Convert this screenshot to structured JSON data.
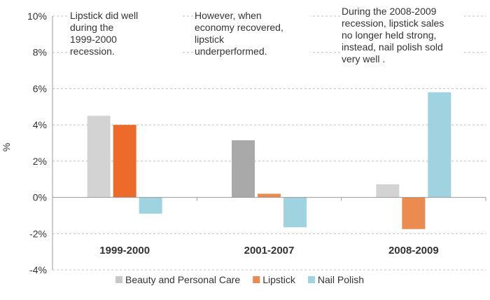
{
  "chart_data": {
    "type": "bar",
    "ylabel": "%",
    "ylim": [
      -4,
      10
    ],
    "yticks": [
      -4,
      -2,
      0,
      2,
      4,
      6,
      8,
      10
    ],
    "ytick_labels": [
      "-4%",
      "-2%",
      "0%",
      "2%",
      "4%",
      "6%",
      "8%",
      "10%"
    ],
    "categories": [
      "1999-2000",
      "2001-2007",
      "2008-2009"
    ],
    "series": [
      {
        "name": "Beauty and Personal Care",
        "values": [
          4.5,
          3.15,
          0.72
        ]
      },
      {
        "name": "Lipstick",
        "values": [
          4.0,
          0.2,
          -1.75
        ]
      },
      {
        "name": "Nail Polish",
        "values": [
          -0.9,
          -1.65,
          5.8
        ]
      }
    ],
    "bar_colors": [
      [
        "#d3d3d3",
        "#ec6a2a",
        "#9fd3df"
      ],
      [
        "#a9a9a9",
        "#ec8b4f",
        "#9fd3df"
      ],
      [
        "#d3d3d3",
        "#ec8b4f",
        "#9fd3df"
      ]
    ],
    "legend_colors": [
      "#c8c8c8",
      "#ec8b4f",
      "#9fd3df"
    ],
    "grid": true,
    "legend_position": "bottom",
    "annotations": [
      "Lipstick did well\nduring the\n1999-2000\nrecession.",
      "However, when\neconomy recovered,\nlipstick\nunderperformed.",
      "During the 2008-2009\nrecession, lipstick sales\nno longer held strong,\ninstead,  nail polish sold\nvery well ."
    ]
  }
}
